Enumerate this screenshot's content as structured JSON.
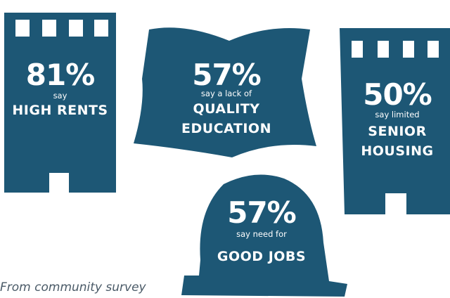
{
  "colors": {
    "shape_fill": "#1d5775",
    "text": "#ffffff",
    "caption": "#4a5a67"
  },
  "stats": [
    {
      "icon": "tall-building-icon",
      "percent": "81%",
      "intro": "say",
      "topic_lines": [
        "HIGH RENTS"
      ]
    },
    {
      "icon": "open-book-icon",
      "percent": "57%",
      "intro": "say a lack of",
      "topic_lines": [
        "QUALITY",
        "EDUCATION"
      ]
    },
    {
      "icon": "apartment-building-icon",
      "percent": "50%",
      "intro": "say limited",
      "topic_lines": [
        "SENIOR",
        "HOUSING"
      ]
    },
    {
      "icon": "hard-hat-icon",
      "percent": "57%",
      "intro": "say need for",
      "topic_lines": [
        "GOOD JOBS"
      ]
    }
  ],
  "caption": "From community survey"
}
